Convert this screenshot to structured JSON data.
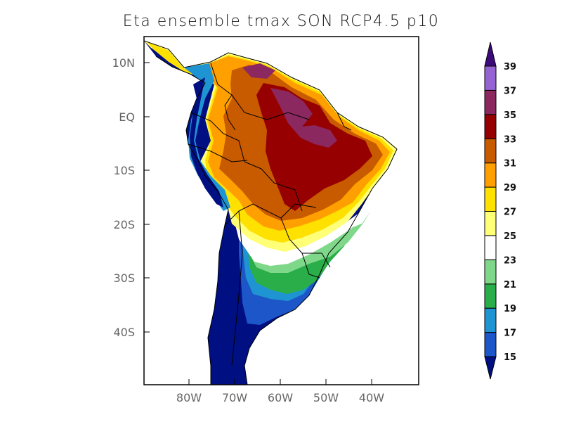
{
  "title": "Eta ensemble tmax SON RCP4.5 p10",
  "lat_labels": [
    "10N",
    "EQ",
    "10S",
    "20S",
    "30S",
    "40S"
  ],
  "lon_labels": [
    "80W",
    "70W",
    "60W",
    "50W",
    "40W"
  ],
  "colorbar": {
    "labels": [
      "15",
      "17",
      "19",
      "21",
      "23",
      "25",
      "27",
      "29",
      "31",
      "33",
      "35",
      "37",
      "39"
    ],
    "colors": [
      "#000f82",
      "#1d56c8",
      "#1f94d2",
      "#2aae4a",
      "#7fd88a",
      "#ffffff",
      "#ffff78",
      "#ffe100",
      "#ffa000",
      "#c85a00",
      "#960000",
      "#8c2860",
      "#9664d2",
      "#3c0a7a"
    ]
  },
  "map_palette": {
    "below_15": "#000f82",
    "t15": "#1d56c8",
    "t17": "#1f94d2",
    "t19": "#2aae4a",
    "t21": "#7fd88a",
    "t23": "#ffffff",
    "t25": "#ffff78",
    "t27": "#ffe100",
    "t29": "#ffa000",
    "t31": "#c85a00",
    "t33": "#960000",
    "t35": "#8c2860"
  }
}
